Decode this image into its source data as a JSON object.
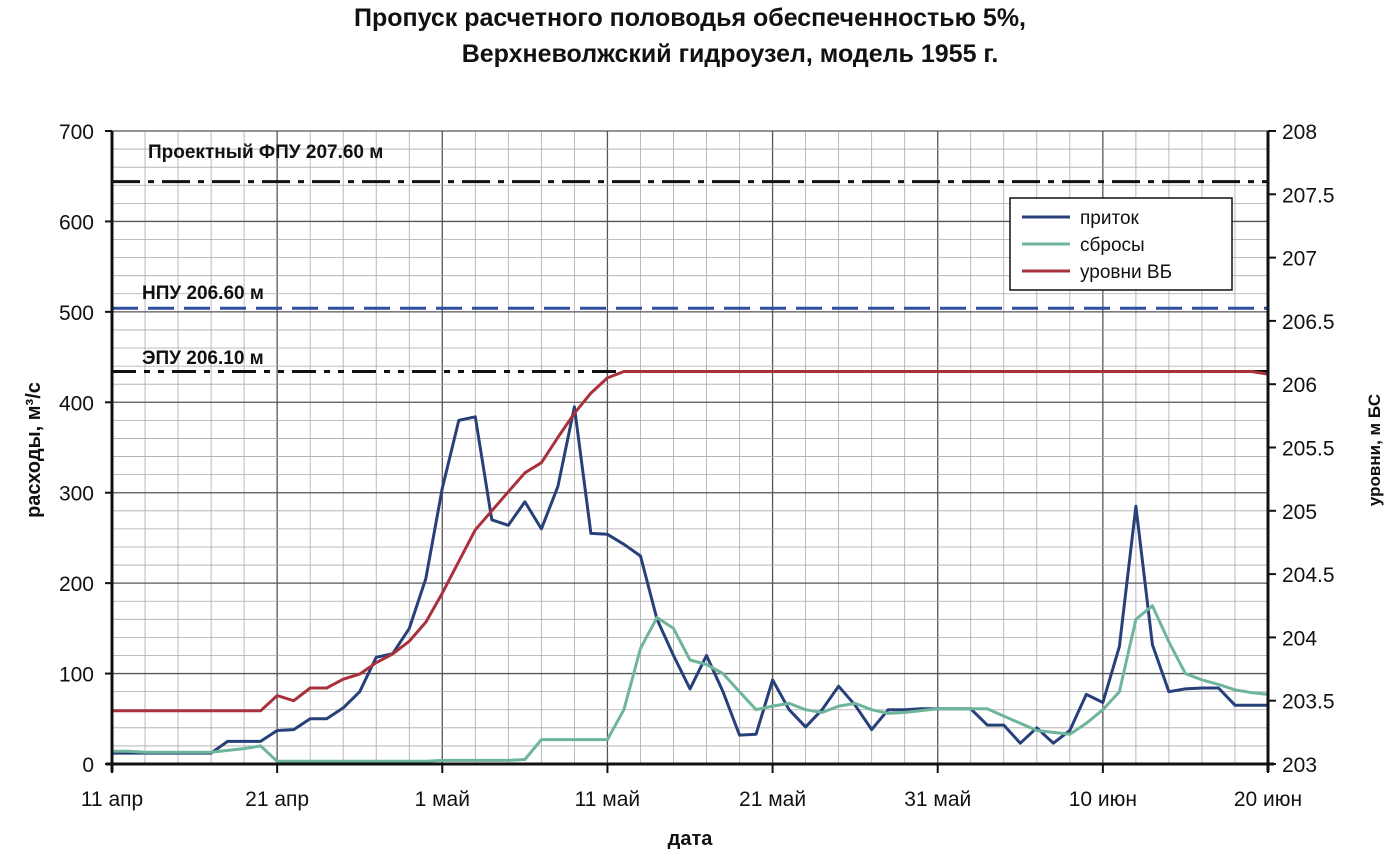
{
  "chart_data": {
    "type": "line",
    "title": [
      "Пропуск расчетного половодья обеспеченностью 5%,",
      "Верхневолжский гидроузел, модель 1955 г."
    ],
    "xlabel": "дата",
    "ylabel": "расходы, м³/с",
    "ylabel_right": "уровни, м БС",
    "x_start": "11 апр",
    "x_ticks": [
      "11 апр",
      "21 апр",
      "1 май",
      "11 май",
      "21 май",
      "31 май",
      "10 июн",
      "20 июн"
    ],
    "ylim": [
      0,
      700
    ],
    "y_ticks": [
      0,
      100,
      200,
      300,
      400,
      500,
      600,
      700
    ],
    "ylim_right": [
      203,
      208
    ],
    "y_ticks_right": [
      "203",
      "203.5",
      "204",
      "204.5",
      "205",
      "205.5",
      "206",
      "206.5",
      "207",
      "207.5",
      "208"
    ],
    "grid": true,
    "legend_position": "top-right",
    "series": [
      {
        "name": "приток",
        "axis": "left",
        "color": "#27407a",
        "values": [
          12,
          12,
          12,
          12,
          12,
          12,
          12,
          25,
          25,
          25,
          37,
          38,
          50,
          50,
          62,
          80,
          118,
          122,
          150,
          205,
          305,
          380,
          384,
          270,
          264,
          290,
          260,
          307,
          395,
          255,
          254,
          243,
          230,
          160,
          120,
          83,
          120,
          80,
          32,
          33,
          93,
          60,
          41,
          60,
          86,
          65,
          38,
          60,
          60,
          61,
          61,
          61,
          61,
          43,
          43,
          23,
          40,
          23,
          37,
          77,
          68,
          130,
          285,
          132,
          80,
          83,
          84,
          84,
          65,
          65,
          65
        ]
      },
      {
        "name": "сбросы",
        "axis": "left",
        "color": "#6fb59b",
        "values": [
          14,
          14,
          13,
          13,
          13,
          13,
          13,
          15,
          17,
          20,
          3,
          3,
          3,
          3,
          3,
          3,
          3,
          3,
          3,
          3,
          4,
          4,
          4,
          4,
          4,
          5,
          27,
          27,
          27,
          27,
          27,
          60,
          128,
          162,
          150,
          115,
          110,
          100,
          80,
          60,
          64,
          67,
          60,
          57,
          64,
          67,
          60,
          56,
          57,
          59,
          61,
          61,
          61,
          61,
          53,
          45,
          37,
          35,
          33,
          45,
          60,
          80,
          160,
          175,
          135,
          100,
          93,
          88,
          82,
          79,
          77
        ]
      },
      {
        "name": "уровни ВБ",
        "axis": "right",
        "color": "#a8313c",
        "values": [
          203.42,
          203.42,
          203.42,
          203.42,
          203.42,
          203.42,
          203.42,
          203.42,
          203.42,
          203.42,
          203.54,
          203.5,
          203.6,
          203.6,
          203.67,
          203.71,
          203.8,
          203.87,
          203.97,
          204.12,
          204.35,
          204.6,
          204.85,
          205.0,
          205.15,
          205.3,
          205.38,
          205.58,
          205.77,
          205.93,
          206.05,
          206.1,
          206.1,
          206.1,
          206.1,
          206.1,
          206.1,
          206.1,
          206.1,
          206.1,
          206.1,
          206.1,
          206.1,
          206.1,
          206.1,
          206.1,
          206.1,
          206.1,
          206.1,
          206.1,
          206.1,
          206.1,
          206.1,
          206.1,
          206.1,
          206.1,
          206.1,
          206.1,
          206.1,
          206.1,
          206.1,
          206.1,
          206.1,
          206.1,
          206.1,
          206.1,
          206.1,
          206.1,
          206.1,
          206.1,
          206.08
        ]
      }
    ],
    "reference_lines": [
      {
        "label": "Проектный ФПУ 207.60 м",
        "value": 207.6,
        "style": "dash-dot",
        "color": "#111111"
      },
      {
        "label": "НПУ 206.60 м",
        "value": 206.6,
        "style": "dashed",
        "color": "#2d4f9e"
      },
      {
        "label": "ЭПУ 206.10 м",
        "value": 206.1,
        "style": "dash-dot-dot",
        "color": "#111111"
      }
    ]
  }
}
